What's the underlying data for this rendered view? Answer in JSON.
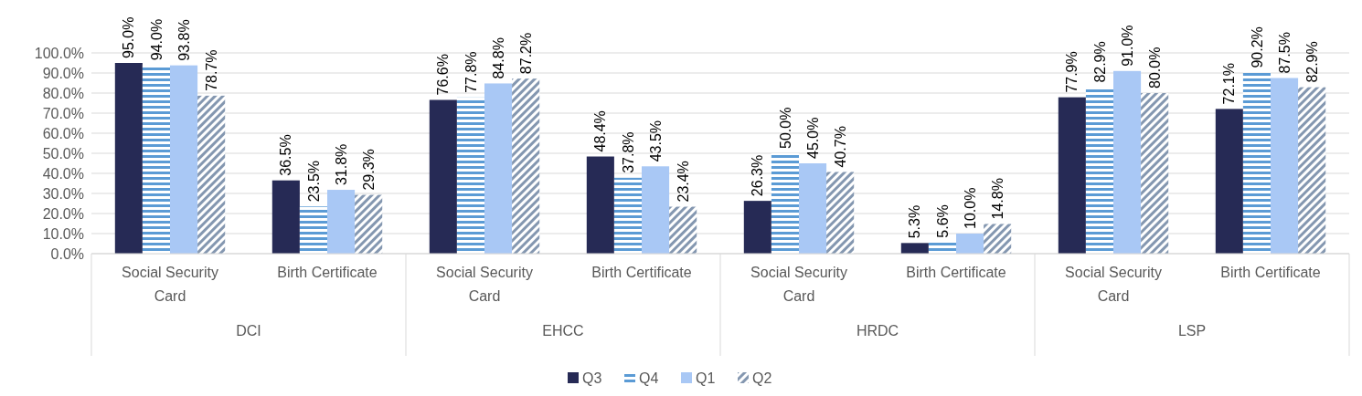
{
  "chart_data": {
    "type": "bar",
    "categories": [
      "Social Security Card",
      "Birth Certificate",
      "Social Security Card",
      "Birth Certificate",
      "Social Security Card",
      "Birth Certificate",
      "Social Security Card",
      "Birth Certificate"
    ],
    "annotations": [
      "DCI",
      "EHCC",
      "HRDC",
      "LSP"
    ],
    "series": [
      {
        "name": "Q3",
        "color": "#262a55",
        "values": [
          95.0,
          36.5,
          76.6,
          48.4,
          26.3,
          5.3,
          77.9,
          72.1
        ],
        "value_labels": [
          "95.0%",
          "36.5%",
          "76.6%",
          "48.4%",
          "26.3%",
          "5.3%",
          "77.9%",
          "72.1%"
        ]
      },
      {
        "name": "Q4",
        "color": "#5b9bd5",
        "values": [
          94.0,
          23.5,
          77.8,
          37.8,
          50.0,
          5.6,
          82.9,
          90.2
        ],
        "value_labels": [
          "94.0%",
          "23.5%",
          "77.8%",
          "37.8%",
          "50.0%",
          "5.6%",
          "82.9%",
          "90.2%"
        ]
      },
      {
        "name": "Q1",
        "color": "#a9c8f5",
        "values": [
          93.8,
          31.8,
          84.8,
          43.5,
          45.0,
          10.0,
          91.0,
          87.5
        ],
        "value_labels": [
          "93.8%",
          "31.8%",
          "84.8%",
          "43.5%",
          "45.0%",
          "10.0%",
          "91.0%",
          "87.5%"
        ]
      },
      {
        "name": "Q2",
        "color": "#8497b0",
        "values": [
          78.7,
          29.3,
          87.2,
          23.4,
          40.7,
          14.8,
          80.0,
          82.9
        ],
        "value_labels": [
          "78.7%",
          "29.3%",
          "87.2%",
          "23.4%",
          "40.7%",
          "14.8%",
          "80.0%",
          "82.9%"
        ]
      }
    ],
    "ylim": [
      0,
      100
    ],
    "yticks": [
      {
        "value": 0,
        "label": "0.0%"
      },
      {
        "value": 10,
        "label": "10.0%"
      },
      {
        "value": 20,
        "label": "20.0%"
      },
      {
        "value": 30,
        "label": "30.0%"
      },
      {
        "value": 40,
        "label": "40.0%"
      },
      {
        "value": 50,
        "label": "50.0%"
      },
      {
        "value": 60,
        "label": "60.0%"
      },
      {
        "value": 70,
        "label": "70.0%"
      },
      {
        "value": 80,
        "label": "80.0%"
      },
      {
        "value": 90,
        "label": "90.0%"
      },
      {
        "value": 100,
        "label": "100.0%"
      }
    ],
    "grid": "y",
    "legend": "bottom"
  }
}
